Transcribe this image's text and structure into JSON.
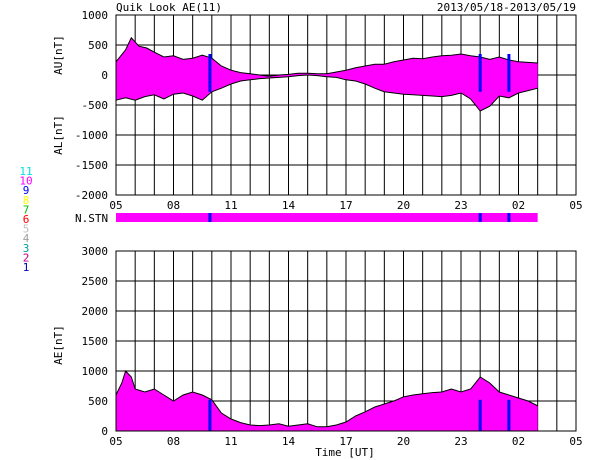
{
  "header": {
    "title": "Quik Look AE(11)",
    "date_range": "2013/05/18-2013/05/19"
  },
  "chart_data": [
    {
      "type": "area",
      "panel": "AU/AL",
      "ylabel_upper": "AU[nT]",
      "ylabel_lower": "AL[nT]",
      "ylim": [
        -2000,
        1000
      ],
      "y_ticks": [
        "1000",
        "500",
        "0",
        "-500",
        "-1000",
        "-1500",
        "-2000"
      ],
      "x_ticks": [
        "05",
        "08",
        "11",
        "14",
        "17",
        "20",
        "23",
        "02",
        "05"
      ],
      "fill_color": "#ff00ff",
      "series": [
        {
          "key": "AU",
          "x": [
            5.0,
            5.5,
            5.8,
            6.2,
            6.6,
            7.0,
            7.5,
            8.0,
            8.5,
            9.0,
            9.5,
            10.0,
            10.5,
            11.0,
            11.5,
            12.0,
            12.5,
            13.0,
            13.5,
            14.0,
            14.5,
            15.0,
            15.5,
            16.0,
            16.5,
            17.0,
            17.5,
            18.0,
            18.5,
            19.0,
            19.5,
            20.0,
            20.5,
            21.0,
            21.5,
            22.0,
            22.5,
            23.0,
            23.5,
            24.0,
            24.5,
            25.0,
            25.5,
            26.0,
            26.5,
            27.0
          ],
          "values": [
            220,
            420,
            620,
            480,
            450,
            380,
            300,
            320,
            260,
            280,
            330,
            280,
            150,
            80,
            40,
            20,
            0,
            -20,
            0,
            10,
            30,
            30,
            20,
            20,
            50,
            80,
            120,
            150,
            180,
            180,
            220,
            250,
            280,
            270,
            300,
            320,
            330,
            350,
            320,
            300,
            260,
            300,
            250,
            220,
            210,
            200
          ]
        },
        {
          "key": "AL",
          "x": [
            5.0,
            5.5,
            6.0,
            6.5,
            7.0,
            7.5,
            8.0,
            8.5,
            9.0,
            9.5,
            10.0,
            10.5,
            11.0,
            11.5,
            12.0,
            12.5,
            13.0,
            13.5,
            14.0,
            14.5,
            15.0,
            15.5,
            16.0,
            16.5,
            17.0,
            17.5,
            18.0,
            18.5,
            19.0,
            19.5,
            20.0,
            20.5,
            21.0,
            21.5,
            22.0,
            22.5,
            23.0,
            23.5,
            24.0,
            24.5,
            25.0,
            25.5,
            26.0,
            26.5,
            27.0
          ],
          "values": [
            -420,
            -380,
            -420,
            -360,
            -330,
            -400,
            -320,
            -300,
            -350,
            -420,
            -280,
            -220,
            -150,
            -100,
            -80,
            -60,
            -50,
            -40,
            -30,
            -10,
            0,
            -10,
            -30,
            -40,
            -80,
            -100,
            -150,
            -220,
            -280,
            -300,
            -320,
            -330,
            -340,
            -350,
            -360,
            -340,
            -300,
            -400,
            -600,
            -520,
            -350,
            -380,
            -300,
            -260,
            -220
          ]
        }
      ]
    },
    {
      "type": "bar",
      "panel": "N.STN",
      "label": "N.STN",
      "fill_color": "#ff00ff",
      "x_start": 5.0,
      "x_end": 27.0
    },
    {
      "type": "area",
      "panel": "AE",
      "ylabel": "AE[nT]",
      "xlabel": "Time [UT]",
      "ylim": [
        0,
        3000
      ],
      "y_ticks": [
        "3000",
        "2500",
        "2000",
        "1500",
        "1000",
        "500",
        "0"
      ],
      "x_ticks": [
        "05",
        "08",
        "11",
        "14",
        "17",
        "20",
        "23",
        "02",
        "05"
      ],
      "fill_color": "#ff00ff",
      "series": [
        {
          "key": "AE",
          "x": [
            5.0,
            5.3,
            5.5,
            5.8,
            6.0,
            6.5,
            7.0,
            7.5,
            8.0,
            8.5,
            9.0,
            9.5,
            10.0,
            10.5,
            11.0,
            11.5,
            12.0,
            12.5,
            13.0,
            13.5,
            14.0,
            14.5,
            15.0,
            15.5,
            16.0,
            16.5,
            17.0,
            17.5,
            18.0,
            18.5,
            19.0,
            19.5,
            20.0,
            20.5,
            21.0,
            21.5,
            22.0,
            22.5,
            23.0,
            23.5,
            24.0,
            24.5,
            25.0,
            25.5,
            26.0,
            26.5,
            27.0
          ],
          "values": [
            600,
            800,
            1000,
            900,
            700,
            650,
            700,
            600,
            500,
            600,
            650,
            600,
            520,
            300,
            200,
            140,
            100,
            90,
            100,
            120,
            80,
            100,
            120,
            70,
            70,
            100,
            150,
            250,
            320,
            400,
            450,
            500,
            570,
            600,
            620,
            640,
            650,
            700,
            650,
            700,
            900,
            800,
            650,
            600,
            550,
            500,
            420
          ]
        }
      ]
    }
  ],
  "station_color_legend": [
    {
      "label": "11",
      "color": "#00e0e0"
    },
    {
      "label": "10",
      "color": "#ff00ff"
    },
    {
      "label": "9",
      "color": "#0000ff"
    },
    {
      "label": "8",
      "color": "#ffff00"
    },
    {
      "label": "7",
      "color": "#00c000"
    },
    {
      "label": "6",
      "color": "#ff0000"
    },
    {
      "label": "5",
      "color": "#c0c0c0"
    },
    {
      "label": "4",
      "color": "#a0a0a0"
    },
    {
      "label": "3",
      "color": "#00a0a0"
    },
    {
      "label": "2",
      "color": "#c00080"
    },
    {
      "label": "1",
      "color": "#0000c0"
    }
  ]
}
